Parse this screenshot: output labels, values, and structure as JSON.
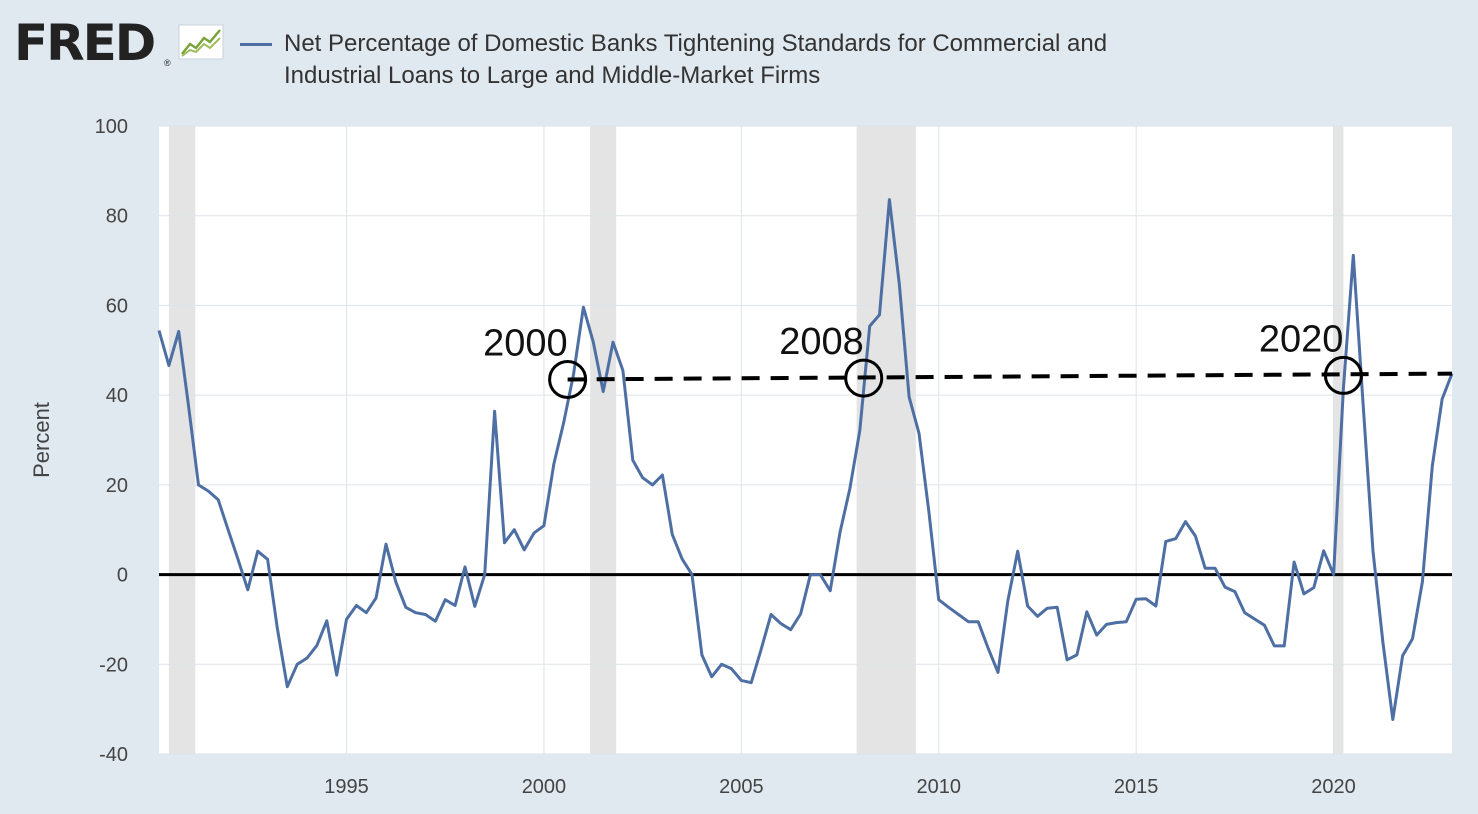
{
  "logo": {
    "text": "FRED",
    "mark": "®",
    "icon": "line-graph-icon"
  },
  "colors": {
    "background": "#e1e9f0",
    "plot_bg": "#ffffff",
    "series": "#4e6fa3",
    "recession": "#e4e4e4",
    "zero_line": "#000000",
    "annotation": "#000000"
  },
  "chart_data": {
    "type": "line",
    "title": "Net Percentage of Domestic Banks Tightening Standards for Commercial and Industrial Loans to Large and Middle-Market Firms",
    "xlabel": "",
    "ylabel": "Percent",
    "xlim": [
      1990.25,
      2023.0
    ],
    "ylim": [
      -40,
      100
    ],
    "y_ticks": [
      -40,
      -20,
      0,
      20,
      40,
      60,
      80,
      100
    ],
    "y_tick_labels": [
      "-40",
      "-20",
      "0",
      "20",
      "40",
      "60",
      "80",
      "100"
    ],
    "x_ticks": [
      1995,
      2000,
      2005,
      2010,
      2015,
      2020
    ],
    "x_tick_labels": [
      "1995",
      "2000",
      "2005",
      "2010",
      "2015",
      "2020"
    ],
    "grid": true,
    "legend_position": "top",
    "recessions": [
      [
        1990.5,
        1991.17
      ],
      [
        2001.17,
        2001.83
      ],
      [
        2007.92,
        2009.42
      ],
      [
        2020.0,
        2020.25
      ]
    ],
    "series": [
      {
        "name": "Net Percentage of Domestic Banks Tightening Standards for Commercial and Industrial Loans to Large and Middle-Market Firms",
        "x": [
          1990.25,
          1990.5,
          1990.75,
          1991.0,
          1991.25,
          1991.5,
          1991.75,
          1992.0,
          1992.25,
          1992.5,
          1992.75,
          1993.0,
          1993.25,
          1993.5,
          1993.75,
          1994.0,
          1994.25,
          1994.5,
          1994.75,
          1995.0,
          1995.25,
          1995.5,
          1995.75,
          1996.0,
          1996.25,
          1996.5,
          1996.75,
          1997.0,
          1997.25,
          1997.5,
          1997.75,
          1998.0,
          1998.25,
          1998.5,
          1998.75,
          1999.0,
          1999.25,
          1999.5,
          1999.75,
          2000.0,
          2000.25,
          2000.5,
          2000.75,
          2001.0,
          2001.25,
          2001.5,
          2001.75,
          2002.0,
          2002.25,
          2002.5,
          2002.75,
          2003.0,
          2003.25,
          2003.5,
          2003.75,
          2004.0,
          2004.25,
          2004.5,
          2004.75,
          2005.0,
          2005.25,
          2005.5,
          2005.75,
          2006.0,
          2006.25,
          2006.5,
          2006.75,
          2007.0,
          2007.25,
          2007.5,
          2007.75,
          2008.0,
          2008.25,
          2008.5,
          2008.75,
          2009.0,
          2009.25,
          2009.5,
          2009.75,
          2010.0,
          2010.25,
          2010.5,
          2010.75,
          2011.0,
          2011.25,
          2011.5,
          2011.75,
          2012.0,
          2012.25,
          2012.5,
          2012.75,
          2013.0,
          2013.25,
          2013.5,
          2013.75,
          2014.0,
          2014.25,
          2014.5,
          2014.75,
          2015.0,
          2015.25,
          2015.5,
          2015.75,
          2016.0,
          2016.25,
          2016.5,
          2016.75,
          2017.0,
          2017.25,
          2017.5,
          2017.75,
          2018.0,
          2018.25,
          2018.5,
          2018.75,
          2019.0,
          2019.25,
          2019.5,
          2019.75,
          2020.0,
          2020.25,
          2020.5,
          2020.75,
          2021.0,
          2021.25,
          2021.5,
          2021.75,
          2022.0,
          2022.25,
          2022.5,
          2022.75,
          2023.0
        ],
        "values": [
          54.4,
          46.6,
          54.2,
          37.5,
          20.0,
          18.6,
          16.7,
          10.0,
          3.4,
          -3.4,
          5.2,
          3.4,
          -12.1,
          -25.0,
          -20.0,
          -18.6,
          -15.8,
          -10.3,
          -22.4,
          -10.0,
          -6.9,
          -8.5,
          -5.2,
          6.8,
          -1.7,
          -7.3,
          -8.5,
          -8.9,
          -10.4,
          -5.6,
          -6.9,
          1.7,
          -7.1,
          0.0,
          36.4,
          7.1,
          10.0,
          5.5,
          9.3,
          10.9,
          24.6,
          33.9,
          44.6,
          59.6,
          51.8,
          40.8,
          51.8,
          45.5,
          25.5,
          21.6,
          20.0,
          22.2,
          8.9,
          3.5,
          0.0,
          -17.9,
          -22.8,
          -20.0,
          -21.0,
          -23.6,
          -24.1,
          -16.7,
          -8.9,
          -10.9,
          -12.3,
          -8.8,
          0.0,
          0.0,
          -3.6,
          9.4,
          19.2,
          32.1,
          55.4,
          57.9,
          83.6,
          64.8,
          39.6,
          31.5,
          14.0,
          -5.6,
          -7.3,
          -8.9,
          -10.5,
          -10.5,
          -16.4,
          -21.8,
          -5.9,
          5.2,
          -7.0,
          -9.3,
          -7.5,
          -7.3,
          -19.0,
          -17.9,
          -8.3,
          -13.5,
          -11.1,
          -10.7,
          -10.5,
          -5.5,
          -5.4,
          -7.0,
          7.4,
          8.0,
          11.8,
          8.6,
          1.4,
          1.4,
          -2.8,
          -3.8,
          -8.5,
          -9.9,
          -11.3,
          -15.9,
          -15.9,
          2.8,
          -4.3,
          -2.9,
          5.3,
          0.0,
          41.5,
          71.2,
          37.7,
          5.2,
          -15.1,
          -32.3,
          -18.1,
          -14.3,
          -1.6,
          24.2,
          39.1,
          44.8
        ]
      }
    ],
    "annotations": [
      {
        "label": "2000",
        "x": 2000.6,
        "y": 43.5
      },
      {
        "label": "2008",
        "x": 2008.1,
        "y": 43.8
      },
      {
        "label": "2020",
        "x": 2020.25,
        "y": 44.4
      }
    ],
    "reference_line": {
      "style": "dashed",
      "x": [
        2000.6,
        2023.0
      ],
      "y": [
        43.5,
        44.8
      ]
    }
  }
}
